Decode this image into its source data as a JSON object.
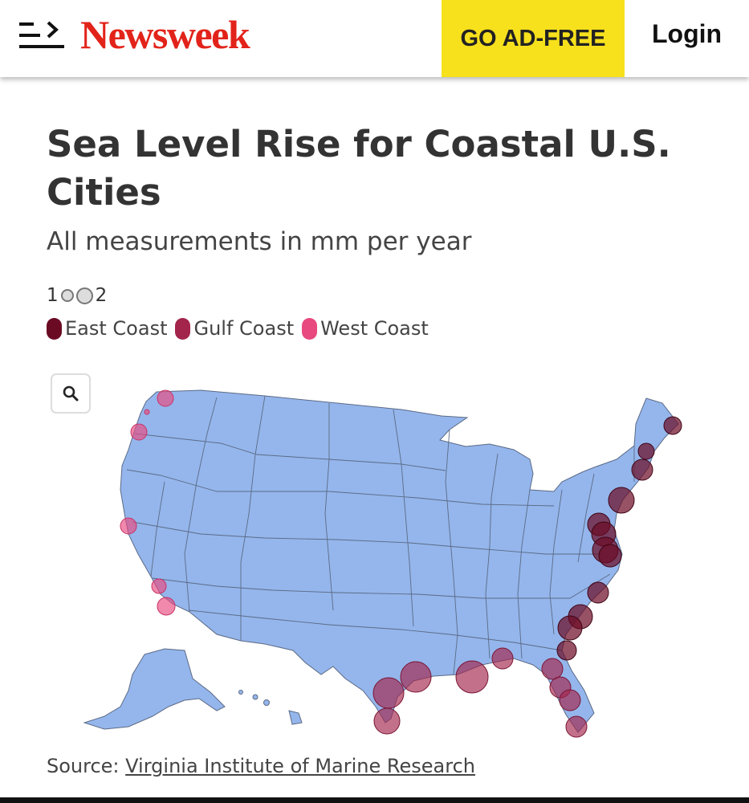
{
  "header": {
    "logo": "Newsweek",
    "ad_free_label": "GO AD-FREE",
    "login_label": "Login"
  },
  "article": {
    "title": "Sea Level Rise for Coastal U.S. Cities",
    "subtitle": "All measurements in mm per year",
    "size_legend": {
      "min": "1",
      "max": "2"
    },
    "source_prefix": "Source: ",
    "source_link": "Virginia Institute of Marine Research"
  },
  "legend": [
    {
      "label": "East Coast",
      "color": "#6b0a23"
    },
    {
      "label": "Gulf Coast",
      "color": "#a3254b"
    },
    {
      "label": "West Coast",
      "color": "#e8497f"
    }
  ],
  "colors": {
    "brand": "#e2231a",
    "ad_free_bg": "#f7e01c",
    "land": "#94b6ec",
    "state_border": "#5c6a86"
  },
  "icons": {
    "menu": "menu-icon",
    "zoom": "search-icon"
  }
}
